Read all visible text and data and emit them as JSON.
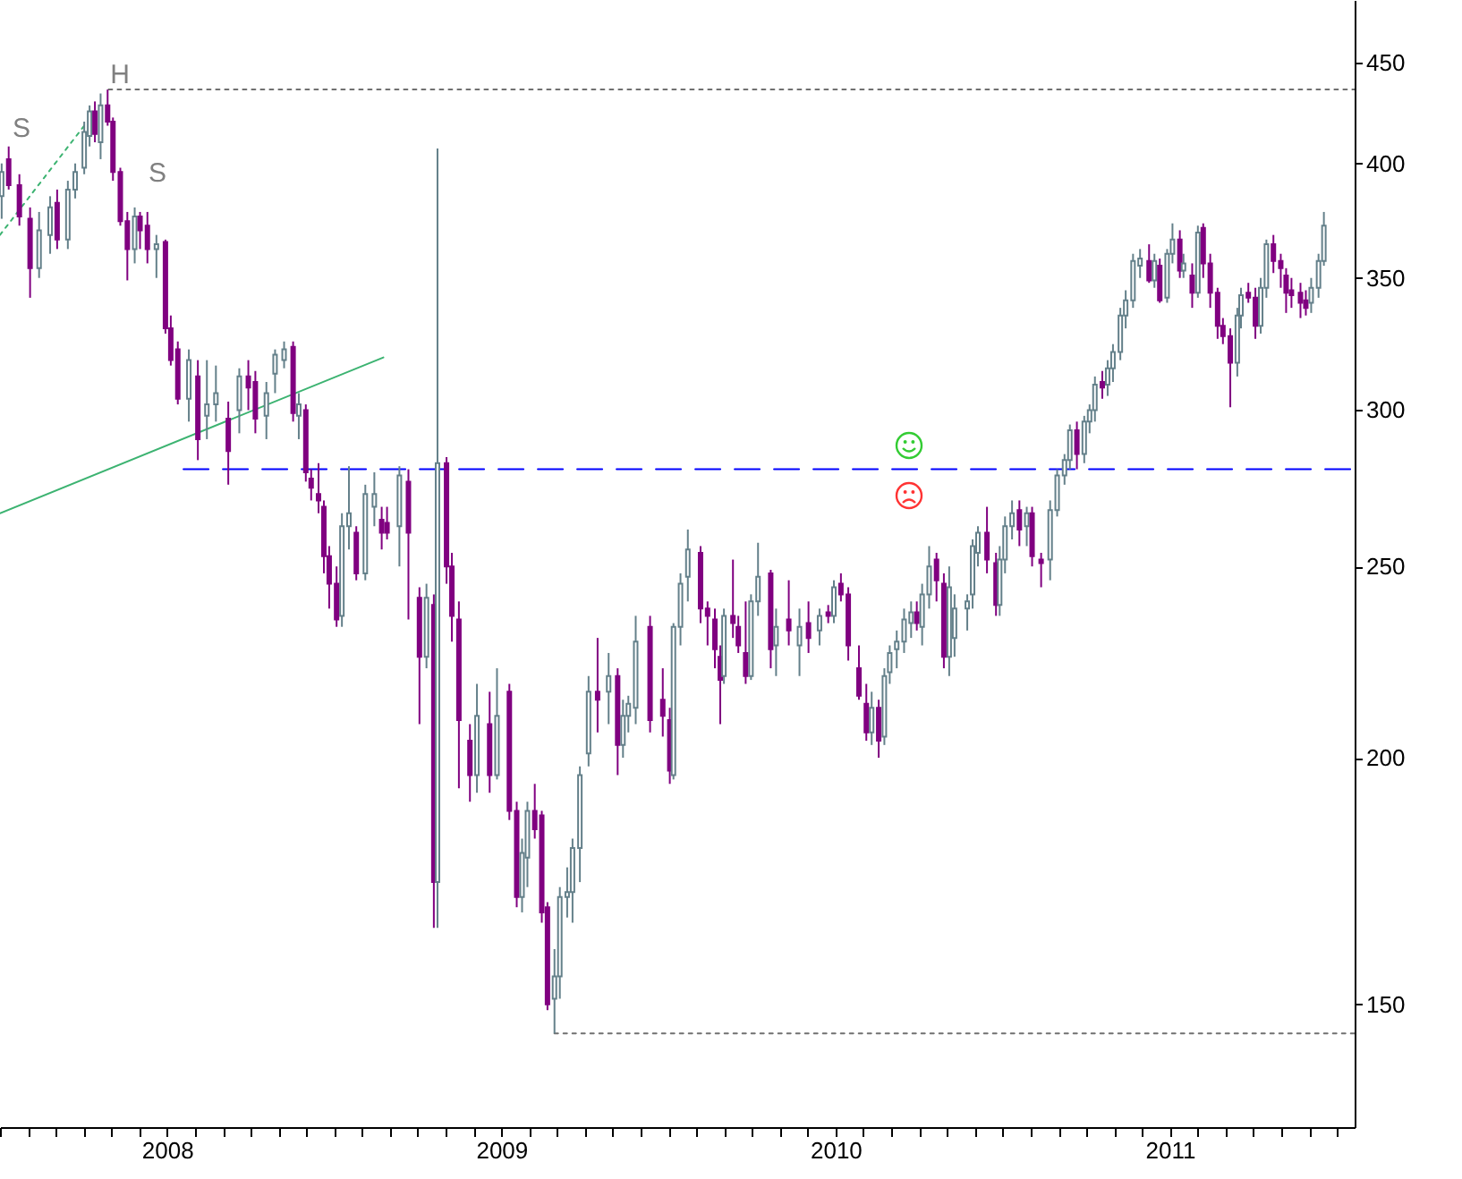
{
  "chart_data": {
    "type": "candlestick",
    "x": [
      2007.505,
      2007.526,
      2007.558,
      2007.59,
      2007.617,
      2007.65,
      2007.671,
      2007.703,
      2007.725,
      2007.752,
      2007.768,
      2007.784,
      2007.801,
      2007.822,
      2007.838,
      2007.86,
      2007.881,
      2007.903,
      2007.919,
      2007.941,
      2007.968,
      2007.995,
      2008.011,
      2008.032,
      2008.065,
      2008.092,
      2008.119,
      2008.146,
      2008.183,
      2008.216,
      2008.243,
      2008.264,
      2008.297,
      2008.323,
      2008.35,
      2008.377,
      2008.394,
      2008.415,
      2008.431,
      2008.453,
      2008.469,
      2008.485,
      2008.507,
      2008.523,
      2008.544,
      2008.566,
      2008.593,
      2008.62,
      2008.642,
      2008.658,
      2008.695,
      2008.722,
      2008.755,
      2008.776,
      2008.798,
      2008.809,
      2008.836,
      2008.852,
      2008.873,
      2008.906,
      2008.927,
      2008.965,
      2008.987,
      2009.024,
      2009.046,
      2009.062,
      2009.078,
      2009.1,
      2009.121,
      2009.138,
      2009.159,
      2009.175,
      2009.197,
      2009.213,
      2009.235,
      2009.261,
      2009.288,
      2009.321,
      2009.348,
      2009.364,
      2009.38,
      2009.402,
      2009.445,
      2009.483,
      2009.504,
      2009.515,
      2009.536,
      2009.558,
      2009.596,
      2009.617,
      2009.639,
      2009.655,
      2009.666,
      2009.693,
      2009.709,
      2009.731,
      2009.747,
      2009.768,
      2009.806,
      2009.822,
      2009.86,
      2009.892,
      2009.919,
      2009.952,
      2009.978,
      2009.995,
      2010.016,
      2010.038,
      2010.07,
      2010.092,
      2010.108,
      2010.129,
      2010.146,
      2010.162,
      2010.183,
      2010.205,
      2010.226,
      2010.243,
      2010.259,
      2010.28,
      2010.302,
      2010.324,
      2010.34,
      2010.356,
      2010.394,
      2010.41,
      2010.426,
      2010.453,
      2010.48,
      2010.491,
      2010.507,
      2010.528,
      2010.55,
      2010.572,
      2010.588,
      2010.615,
      2010.642,
      2010.663,
      2010.685,
      2010.701,
      2010.722,
      2010.744,
      2010.76,
      2010.776,
      2010.798,
      2010.814,
      2010.83,
      2010.852,
      2010.868,
      2010.89,
      2010.911,
      2010.938,
      2010.954,
      2010.97,
      2010.992,
      2011.008,
      2011.03,
      2011.041,
      2011.067,
      2011.084,
      2011.1,
      2011.121,
      2011.143,
      2011.159,
      2011.181,
      2011.202,
      2011.213,
      2011.235,
      2011.256,
      2011.272,
      2011.289,
      2011.31,
      2011.332,
      2011.348,
      2011.364,
      2011.391,
      2011.407,
      2011.423,
      2011.445,
      2011.461
    ],
    "ohlc": [
      [
        385,
        400,
        375,
        396
      ],
      [
        402,
        408,
        388,
        390
      ],
      [
        390,
        395,
        372,
        376
      ],
      [
        375,
        380,
        342,
        354
      ],
      [
        354,
        378,
        350,
        370
      ],
      [
        368,
        385,
        360,
        380
      ],
      [
        382,
        388,
        362,
        366
      ],
      [
        366,
        392,
        362,
        388
      ],
      [
        388,
        400,
        384,
        396
      ],
      [
        398,
        420,
        395,
        415
      ],
      [
        413,
        428,
        408,
        425
      ],
      [
        425,
        430,
        410,
        414
      ],
      [
        410,
        434,
        402,
        428
      ],
      [
        428,
        436,
        418,
        420
      ],
      [
        420,
        422,
        392,
        396
      ],
      [
        396,
        398,
        372,
        374
      ],
      [
        374,
        378,
        349,
        362
      ],
      [
        362,
        380,
        356,
        376
      ],
      [
        376,
        378,
        362,
        370
      ],
      [
        372,
        378,
        356,
        362
      ],
      [
        362,
        368,
        350,
        364
      ],
      [
        365,
        366,
        328,
        330
      ],
      [
        330,
        335,
        316,
        318
      ],
      [
        322,
        325,
        302,
        304
      ],
      [
        304,
        322,
        296,
        318
      ],
      [
        312,
        318,
        283,
        290
      ],
      [
        298,
        318,
        290,
        302
      ],
      [
        302,
        316,
        296,
        306
      ],
      [
        297,
        303,
        275,
        286
      ],
      [
        300,
        315,
        292,
        312
      ],
      [
        312,
        318,
        300,
        308
      ],
      [
        310,
        314,
        292,
        297
      ],
      [
        298,
        310,
        290,
        306
      ],
      [
        313,
        322,
        306,
        320
      ],
      [
        318,
        325,
        315,
        322
      ],
      [
        323,
        325,
        296,
        299
      ],
      [
        298,
        306,
        290,
        302
      ],
      [
        300,
        302,
        276,
        279
      ],
      [
        277,
        280,
        270,
        274
      ],
      [
        272,
        282,
        266,
        270
      ],
      [
        268,
        270,
        248,
        253
      ],
      [
        253,
        256,
        238,
        245
      ],
      [
        245,
        250,
        233,
        235
      ],
      [
        236,
        266,
        233,
        262
      ],
      [
        262,
        281,
        255,
        266
      ],
      [
        260,
        262,
        246,
        248
      ],
      [
        248,
        275,
        246,
        272
      ],
      [
        268,
        279,
        262,
        272
      ],
      [
        264,
        268,
        255,
        260
      ],
      [
        263,
        268,
        258,
        260
      ],
      [
        262,
        281,
        250,
        278
      ],
      [
        276,
        280,
        235,
        260
      ],
      [
        241,
        244,
        208,
        225
      ],
      [
        225,
        245,
        222,
        241
      ],
      [
        239,
        242,
        164,
        173
      ],
      [
        173,
        407,
        164,
        282
      ],
      [
        282,
        284,
        245,
        250
      ],
      [
        250,
        254,
        229,
        236
      ],
      [
        235,
        240,
        193,
        209
      ],
      [
        204,
        208,
        190,
        196
      ],
      [
        196,
        218,
        192,
        210
      ],
      [
        208,
        216,
        192,
        196
      ],
      [
        196,
        222,
        195,
        210
      ],
      [
        216,
        218,
        186,
        188
      ],
      [
        188,
        190,
        168,
        170
      ],
      [
        170,
        182,
        167,
        179
      ],
      [
        178,
        190,
        172,
        188
      ],
      [
        188,
        194,
        182,
        184
      ],
      [
        187,
        188,
        165,
        167
      ],
      [
        168,
        169,
        149,
        150
      ],
      [
        151,
        160,
        145,
        155
      ],
      [
        155,
        172,
        151,
        170
      ],
      [
        170,
        176,
        166,
        171
      ],
      [
        171,
        182,
        165,
        180
      ],
      [
        180,
        198,
        173,
        196
      ],
      [
        201,
        220,
        198,
        216
      ],
      [
        216,
        230,
        206,
        214
      ],
      [
        216,
        226,
        208,
        220
      ],
      [
        220,
        222,
        196,
        203
      ],
      [
        203,
        214,
        200,
        210
      ],
      [
        210,
        215,
        206,
        213
      ],
      [
        212,
        236,
        208,
        229
      ],
      [
        233,
        236,
        206,
        209
      ],
      [
        214,
        222,
        205,
        210
      ],
      [
        209,
        212,
        194,
        197
      ],
      [
        196,
        234,
        195,
        233
      ],
      [
        233,
        248,
        228,
        245
      ],
      [
        247,
        261,
        240,
        255
      ],
      [
        254,
        256,
        234,
        238
      ],
      [
        238,
        240,
        228,
        236
      ],
      [
        235,
        238,
        222,
        227
      ],
      [
        225,
        228,
        208,
        219
      ],
      [
        220,
        238,
        218,
        236
      ],
      [
        236,
        252,
        230,
        234
      ],
      [
        233,
        236,
        226,
        228
      ],
      [
        226,
        240,
        218,
        220
      ],
      [
        220,
        242,
        219,
        240
      ],
      [
        240,
        257,
        236,
        247
      ],
      [
        248,
        249,
        222,
        227
      ],
      [
        228,
        238,
        220,
        233
      ],
      [
        235,
        246,
        228,
        232
      ],
      [
        228,
        238,
        220,
        233
      ],
      [
        234,
        240,
        226,
        230
      ],
      [
        232,
        238,
        228,
        236
      ],
      [
        237,
        239,
        234,
        236
      ],
      [
        236,
        246,
        234,
        244
      ],
      [
        245,
        248,
        240,
        242
      ],
      [
        242,
        244,
        224,
        228
      ],
      [
        222,
        228,
        214,
        215
      ],
      [
        213,
        218,
        204,
        206
      ],
      [
        206,
        216,
        203,
        212
      ],
      [
        212,
        214,
        200,
        204
      ],
      [
        205,
        222,
        203,
        220
      ],
      [
        221,
        228,
        218,
        226
      ],
      [
        227,
        232,
        222,
        229
      ],
      [
        229,
        238,
        226,
        235
      ],
      [
        234,
        240,
        230,
        237
      ],
      [
        237,
        240,
        232,
        234
      ],
      [
        233,
        245,
        228,
        242
      ],
      [
        242,
        256,
        238,
        250
      ],
      [
        252,
        254,
        240,
        246
      ],
      [
        245,
        248,
        222,
        225
      ],
      [
        225,
        250,
        220,
        244
      ],
      [
        230,
        242,
        225,
        238
      ],
      [
        238,
        242,
        232,
        240
      ],
      [
        242,
        258,
        238,
        256
      ],
      [
        254,
        262,
        250,
        260
      ],
      [
        260,
        268,
        248,
        252
      ],
      [
        251,
        254,
        236,
        239
      ],
      [
        239,
        256,
        236,
        252
      ],
      [
        252,
        265,
        248,
        262
      ],
      [
        262,
        270,
        258,
        266
      ],
      [
        267,
        270,
        256,
        261
      ],
      [
        262,
        268,
        256,
        266
      ],
      [
        266,
        268,
        250,
        253
      ],
      [
        252,
        254,
        244,
        251
      ],
      [
        252,
        270,
        246,
        267
      ],
      [
        267,
        280,
        265,
        278
      ],
      [
        278,
        285,
        275,
        283
      ],
      [
        283,
        295,
        280,
        293
      ],
      [
        293,
        296,
        280,
        285
      ],
      [
        285,
        298,
        282,
        296
      ],
      [
        296,
        302,
        292,
        300
      ],
      [
        300,
        312,
        296,
        309
      ],
      [
        310,
        314,
        304,
        308
      ],
      [
        309,
        318,
        305,
        315
      ],
      [
        315,
        324,
        310,
        321
      ],
      [
        321,
        338,
        318,
        335
      ],
      [
        335,
        345,
        330,
        341
      ],
      [
        341,
        360,
        338,
        357
      ],
      [
        355,
        362,
        350,
        358
      ],
      [
        357,
        364,
        348,
        349
      ],
      [
        349,
        360,
        346,
        357
      ],
      [
        355,
        358,
        340,
        341
      ],
      [
        342,
        362,
        340,
        360
      ],
      [
        360,
        373,
        356,
        366
      ],
      [
        366,
        370,
        350,
        353
      ],
      [
        353,
        360,
        350,
        356
      ],
      [
        351,
        356,
        338,
        344
      ],
      [
        344,
        372,
        342,
        369
      ],
      [
        371,
        373,
        350,
        356
      ],
      [
        356,
        360,
        338,
        344
      ],
      [
        344,
        346,
        326,
        331
      ],
      [
        331,
        334,
        324,
        327
      ],
      [
        327,
        330,
        301,
        317
      ],
      [
        317,
        338,
        312,
        335
      ],
      [
        335,
        346,
        330,
        343
      ],
      [
        344,
        348,
        340,
        342
      ],
      [
        342,
        346,
        326,
        331
      ],
      [
        331,
        350,
        328,
        346
      ],
      [
        346,
        366,
        342,
        364
      ],
      [
        364,
        368,
        352,
        357
      ],
      [
        357,
        360,
        346,
        354
      ],
      [
        351,
        354,
        336,
        344
      ],
      [
        345,
        350,
        338,
        343
      ],
      [
        344,
        348,
        334,
        340
      ],
      [
        341,
        345,
        335,
        338
      ],
      [
        340,
        350,
        336,
        346
      ],
      [
        346,
        360,
        342,
        357
      ],
      [
        357,
        378,
        355,
        372
      ]
    ],
    "colors": [
      "#64808a",
      "#800080",
      "#800080",
      "#800080",
      "#64808a",
      "#64808a",
      "#800080",
      "#64808a",
      "#64808a",
      "#64808a",
      "#64808a",
      "#800080",
      "#64808a",
      "#800080",
      "#800080",
      "#800080",
      "#800080",
      "#64808a",
      "#800080",
      "#800080",
      "#64808a",
      "#800080",
      "#800080",
      "#800080",
      "#64808a",
      "#800080",
      "#64808a",
      "#64808a",
      "#800080",
      "#64808a",
      "#800080",
      "#800080",
      "#64808a",
      "#64808a",
      "#64808a",
      "#800080",
      "#64808a",
      "#800080",
      "#800080",
      "#800080",
      "#800080",
      "#800080",
      "#800080",
      "#64808a",
      "#64808a",
      "#800080",
      "#64808a",
      "#64808a",
      "#800080",
      "#800080",
      "#64808a",
      "#800080",
      "#800080",
      "#64808a",
      "#800080",
      "#64808a",
      "#800080",
      "#800080",
      "#800080",
      "#800080",
      "#64808a",
      "#800080",
      "#64808a",
      "#800080",
      "#800080",
      "#64808a",
      "#64808a",
      "#800080",
      "#800080",
      "#800080",
      "#64808a",
      "#64808a",
      "#64808a",
      "#64808a",
      "#64808a",
      "#64808a",
      "#800080",
      "#64808a",
      "#800080",
      "#64808a",
      "#64808a",
      "#64808a",
      "#800080",
      "#800080",
      "#800080",
      "#64808a",
      "#64808a",
      "#64808a",
      "#800080",
      "#800080",
      "#800080",
      "#800080",
      "#64808a",
      "#800080",
      "#800080",
      "#800080",
      "#64808a",
      "#64808a",
      "#800080",
      "#64808a",
      "#800080",
      "#64808a",
      "#800080",
      "#64808a",
      "#800080",
      "#64808a",
      "#800080",
      "#800080",
      "#800080",
      "#800080",
      "#64808a",
      "#800080",
      "#64808a",
      "#64808a",
      "#64808a",
      "#64808a",
      "#64808a",
      "#800080",
      "#64808a",
      "#64808a",
      "#800080",
      "#800080",
      "#64808a",
      "#64808a",
      "#64808a",
      "#64808a",
      "#64808a",
      "#800080",
      "#800080",
      "#64808a",
      "#64808a",
      "#64808a",
      "#800080",
      "#64808a",
      "#800080",
      "#800080",
      "#64808a",
      "#64808a",
      "#64808a",
      "#64808a",
      "#800080",
      "#64808a",
      "#64808a",
      "#64808a",
      "#800080",
      "#64808a",
      "#64808a",
      "#64808a",
      "#64808a",
      "#64808a",
      "#64808a",
      "#800080",
      "#64808a",
      "#800080",
      "#64808a",
      "#64808a",
      "#800080",
      "#64808a",
      "#800080",
      "#64808a",
      "#800080",
      "#800080",
      "#800080",
      "#800080",
      "#800080",
      "#64808a",
      "#64808a",
      "#800080",
      "#800080",
      "#64808a",
      "#64808a",
      "#800080",
      "#800080",
      "#800080",
      "#800080",
      "#800080",
      "#800080",
      "#64808a",
      "#64808a",
      "#64808a"
    ],
    "series": [
      {
        "type": "line",
        "x": [
          2007.5,
          2008.647
        ],
        "values": [
          266,
          319
        ],
        "color": "#3cb371",
        "line_style": "solid"
      },
      {
        "type": "line",
        "x": [
          2007.5,
          2007.752
        ],
        "values": [
          368,
          418
        ],
        "color": "#3cb371",
        "line_style": "dotted"
      },
      {
        "type": "line",
        "x": [
          2008.049,
          2011.553
        ],
        "values": [
          280,
          280
        ],
        "color": "#0000ff",
        "line_style": "dashed"
      },
      {
        "type": "line",
        "x": [
          2007.825,
          2011.553
        ],
        "values": [
          436,
          436
        ],
        "color": "#707070",
        "line_style": "dotted"
      },
      {
        "type": "line",
        "x": [
          2009.159,
          2011.553
        ],
        "values": [
          145,
          145
        ],
        "color": "#707070",
        "line_style": "dotted"
      }
    ],
    "annotations": [
      "H",
      "S",
      "S"
    ],
    "xlim": [
      2007.5,
      2011.553
    ],
    "xticks": [
      {
        "value": 2007.5,
        "label": null
      },
      {
        "value": 2007.583,
        "label": null
      },
      {
        "value": 2007.667,
        "label": null
      },
      {
        "value": 2007.75,
        "label": null
      },
      {
        "value": 2007.833,
        "label": null
      },
      {
        "value": 2007.917,
        "label": null
      },
      2008,
      {
        "value": 2008.083,
        "label": null
      },
      {
        "value": 2008.167,
        "label": null
      },
      {
        "value": 2008.25,
        "label": null
      },
      {
        "value": 2008.333,
        "label": null
      },
      {
        "value": 2008.417,
        "label": null
      },
      {
        "value": 2008.5,
        "label": null
      },
      {
        "value": 2008.583,
        "label": null
      },
      {
        "value": 2008.667,
        "label": null
      },
      {
        "value": 2008.75,
        "label": null
      },
      {
        "value": 2008.833,
        "label": null
      },
      {
        "value": 2008.917,
        "label": null
      },
      2009,
      {
        "value": 2009.083,
        "label": null
      },
      {
        "value": 2009.167,
        "label": null
      },
      {
        "value": 2009.25,
        "label": null
      },
      {
        "value": 2009.333,
        "label": null
      },
      {
        "value": 2009.417,
        "label": null
      },
      {
        "value": 2009.5,
        "label": null
      },
      {
        "value": 2009.583,
        "label": null
      },
      {
        "value": 2009.667,
        "label": null
      },
      {
        "value": 2009.75,
        "label": null
      },
      {
        "value": 2009.833,
        "label": null
      },
      {
        "value": 2009.917,
        "label": null
      },
      2010,
      {
        "value": 2010.083,
        "label": null
      },
      {
        "value": 2010.167,
        "label": null
      },
      {
        "value": 2010.25,
        "label": null
      },
      {
        "value": 2010.333,
        "label": null
      },
      {
        "value": 2010.417,
        "label": null
      },
      {
        "value": 2010.5,
        "label": null
      },
      {
        "value": 2010.583,
        "label": null
      },
      {
        "value": 2010.667,
        "label": null
      },
      {
        "value": 2010.75,
        "label": null
      },
      {
        "value": 2010.833,
        "label": null
      },
      {
        "value": 2010.917,
        "label": null
      },
      2011,
      {
        "value": 2011.083,
        "label": null
      },
      {
        "value": 2011.167,
        "label": null
      },
      {
        "value": 2011.25,
        "label": null
      },
      {
        "value": 2011.333,
        "label": null
      },
      {
        "value": 2011.417,
        "label": null
      },
      {
        "value": 2011.5,
        "label": null
      }
    ],
    "ylim": [
      130,
      484
    ],
    "yticks": [
      150,
      200,
      250,
      300,
      350,
      400,
      450
    ],
    "log": "y",
    "grid": false
  }
}
